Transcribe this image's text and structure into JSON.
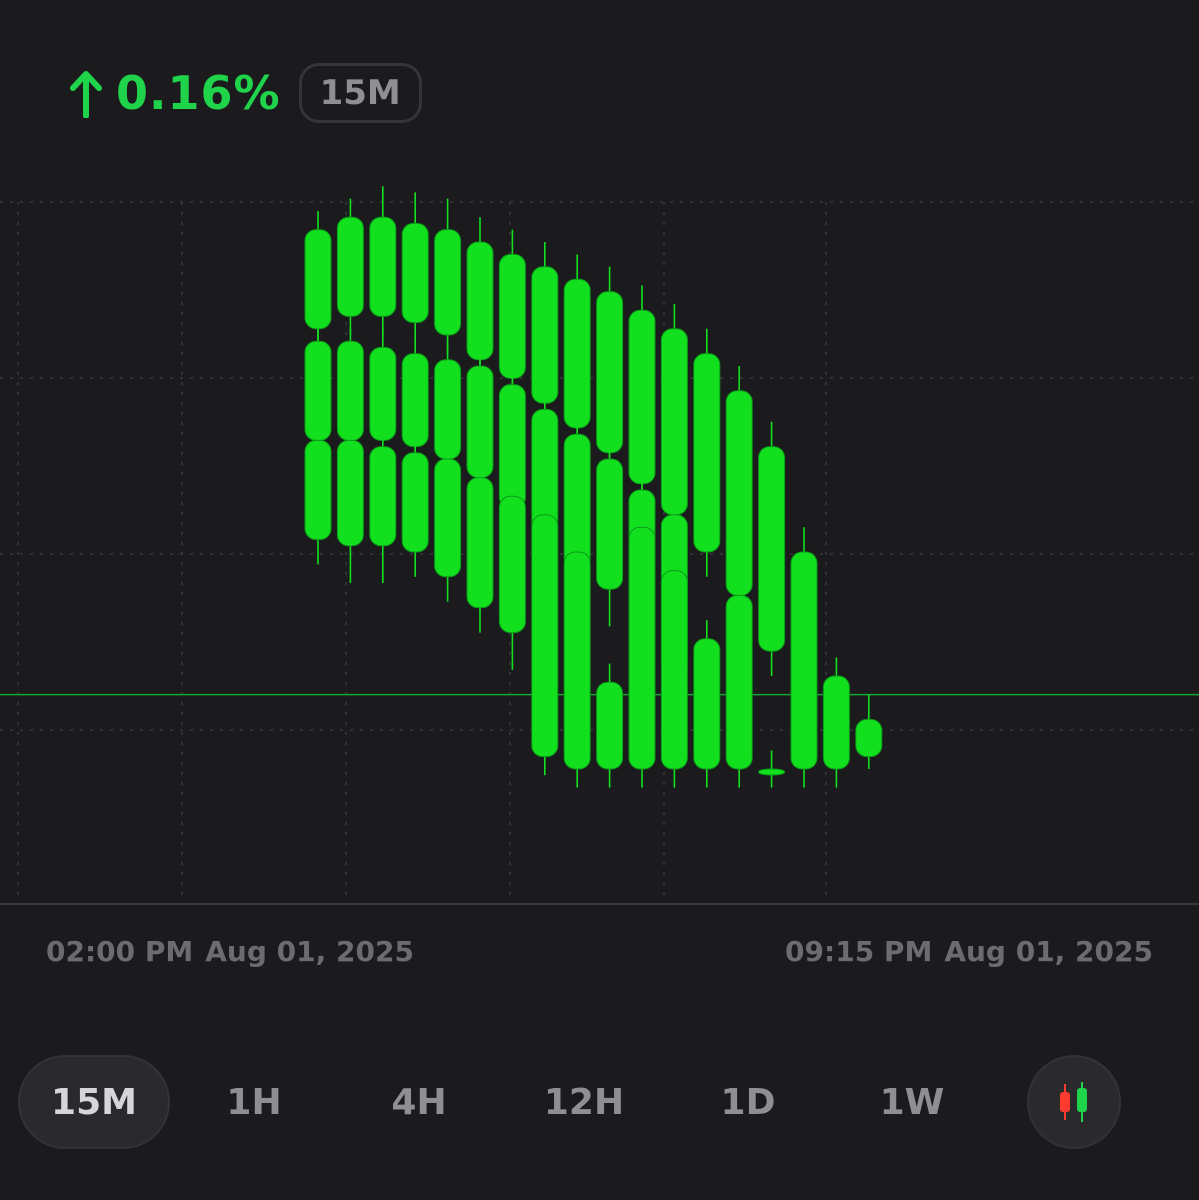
{
  "header": {
    "change_text": "0.16%",
    "change_direction_icon": "arrow-up-icon",
    "interval_badge": "15M"
  },
  "colors": {
    "up": "#1fd34a",
    "candle": "#12e01e",
    "background": "#1b1b1d",
    "grid": "#3a3a3c",
    "muted_text": "#6c6c70"
  },
  "x_axis": {
    "start_time": "02:00 PM",
    "start_date": "Aug 01, 2025",
    "end_time": "09:15 PM",
    "end_date": "Aug 01, 2025"
  },
  "timeframes": {
    "items": [
      "15M",
      "1H",
      "4H",
      "12H",
      "1D",
      "1W"
    ],
    "selected": "15M",
    "chart_type_icon": "candlestick-icon"
  },
  "chart_data": {
    "type": "candlestick",
    "x_start": "02:00 PM Aug 01, 2025",
    "x_end": "09:15 PM Aug 01, 2025",
    "interval": "15M",
    "current_price_line": 17,
    "y_range": [
      0,
      100
    ],
    "grid": true,
    "columns": [
      {
        "candles": [
          [
            92,
            95,
            76,
            73
          ],
          [
            74,
            76,
            58,
            54
          ],
          [
            58,
            60,
            42,
            38
          ]
        ]
      },
      {
        "candles": [
          [
            94,
            97,
            78,
            75
          ],
          [
            74,
            76,
            58,
            55
          ],
          [
            58,
            60,
            41,
            35
          ]
        ]
      },
      {
        "candles": [
          [
            94,
            99,
            78,
            75
          ],
          [
            73,
            76,
            58,
            54
          ],
          [
            57,
            60,
            41,
            35
          ]
        ]
      },
      {
        "candles": [
          [
            93,
            98,
            77,
            74
          ],
          [
            72,
            75,
            57,
            53
          ],
          [
            56,
            59,
            40,
            36
          ]
        ]
      },
      {
        "candles": [
          [
            92,
            97,
            75,
            72
          ],
          [
            71,
            74,
            55,
            50
          ],
          [
            55,
            57,
            36,
            32
          ]
        ]
      },
      {
        "candles": [
          [
            90,
            94,
            71,
            68
          ],
          [
            70,
            73,
            52,
            47
          ],
          [
            52,
            55,
            31,
            27
          ]
        ]
      },
      {
        "candles": [
          [
            88,
            92,
            68,
            65
          ],
          [
            67,
            70,
            47,
            42
          ],
          [
            49,
            52,
            27,
            21
          ]
        ]
      },
      {
        "candles": [
          [
            86,
            90,
            64,
            60
          ],
          [
            63,
            66,
            43,
            37
          ],
          [
            46,
            49,
            7,
            4
          ]
        ]
      },
      {
        "candles": [
          [
            84,
            88,
            60,
            55
          ],
          [
            59,
            62,
            37,
            32
          ],
          [
            40,
            43,
            5,
            2
          ]
        ]
      },
      {
        "candles": [
          [
            82,
            86,
            56,
            51
          ],
          [
            55,
            58,
            34,
            28
          ],
          [
            19,
            22,
            5,
            2
          ]
        ]
      },
      {
        "candles": [
          [
            79,
            83,
            51,
            47
          ],
          [
            50,
            53,
            27,
            23
          ],
          [
            44,
            47,
            5,
            2
          ]
        ]
      },
      {
        "candles": [
          [
            76,
            80,
            46,
            42
          ],
          [
            46,
            49,
            20,
            16
          ],
          [
            37,
            40,
            5,
            2
          ]
        ]
      },
      {
        "candles": [
          [
            72,
            76,
            40,
            36
          ],
          [
            26,
            29,
            5,
            2
          ]
        ]
      },
      {
        "candles": [
          [
            66,
            70,
            33,
            29
          ],
          [
            33,
            36,
            5,
            2
          ]
        ]
      },
      {
        "candles": [
          [
            57,
            61,
            24,
            20
          ],
          [
            5,
            8,
            5,
            2
          ]
        ]
      },
      {
        "candles": [
          [
            40,
            44,
            5,
            2
          ]
        ]
      },
      {
        "candles": [
          [
            20,
            23,
            5,
            2
          ]
        ]
      },
      {
        "candles": [
          [
            13,
            17,
            7,
            5
          ]
        ]
      }
    ]
  }
}
